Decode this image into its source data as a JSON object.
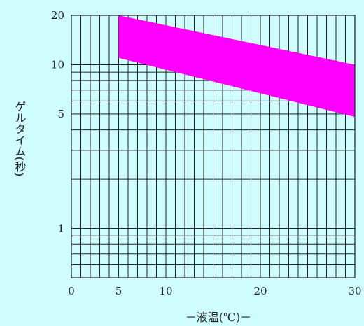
{
  "chart_data": {
    "type": "area",
    "xlabel": "－液温(℃)－",
    "ylabel": "ゲルタイム(秒)",
    "xlim": [
      0,
      30
    ],
    "ylim": [
      0.5,
      20
    ],
    "yscale": "log",
    "grid": true,
    "x_ticks": [
      0,
      5,
      10,
      20,
      30
    ],
    "x_tick_labels": [
      "0",
      "5",
      "10",
      "20",
      "30"
    ],
    "y_ticks": [
      1,
      5,
      10,
      20
    ],
    "y_tick_labels": [
      "1",
      "5",
      "10",
      "20"
    ],
    "x_gridlines": [
      0,
      1,
      2,
      3,
      4,
      5,
      6,
      7,
      8,
      9,
      10,
      11,
      12,
      13,
      14,
      15,
      16,
      17,
      18,
      19,
      20,
      21,
      22,
      23,
      24,
      25,
      26,
      27,
      28,
      29,
      30
    ],
    "y_gridlines": [
      0.5,
      0.6,
      0.7,
      0.8,
      0.9,
      1,
      2,
      3,
      4,
      5,
      6,
      7,
      8,
      9,
      10,
      20
    ],
    "band": {
      "x": [
        5,
        30
      ],
      "upper": [
        20,
        10
      ],
      "lower": [
        11,
        4.8
      ]
    },
    "colors": {
      "band": "#ff00ff",
      "grid": "#222222",
      "background": "#cffcfd"
    }
  }
}
